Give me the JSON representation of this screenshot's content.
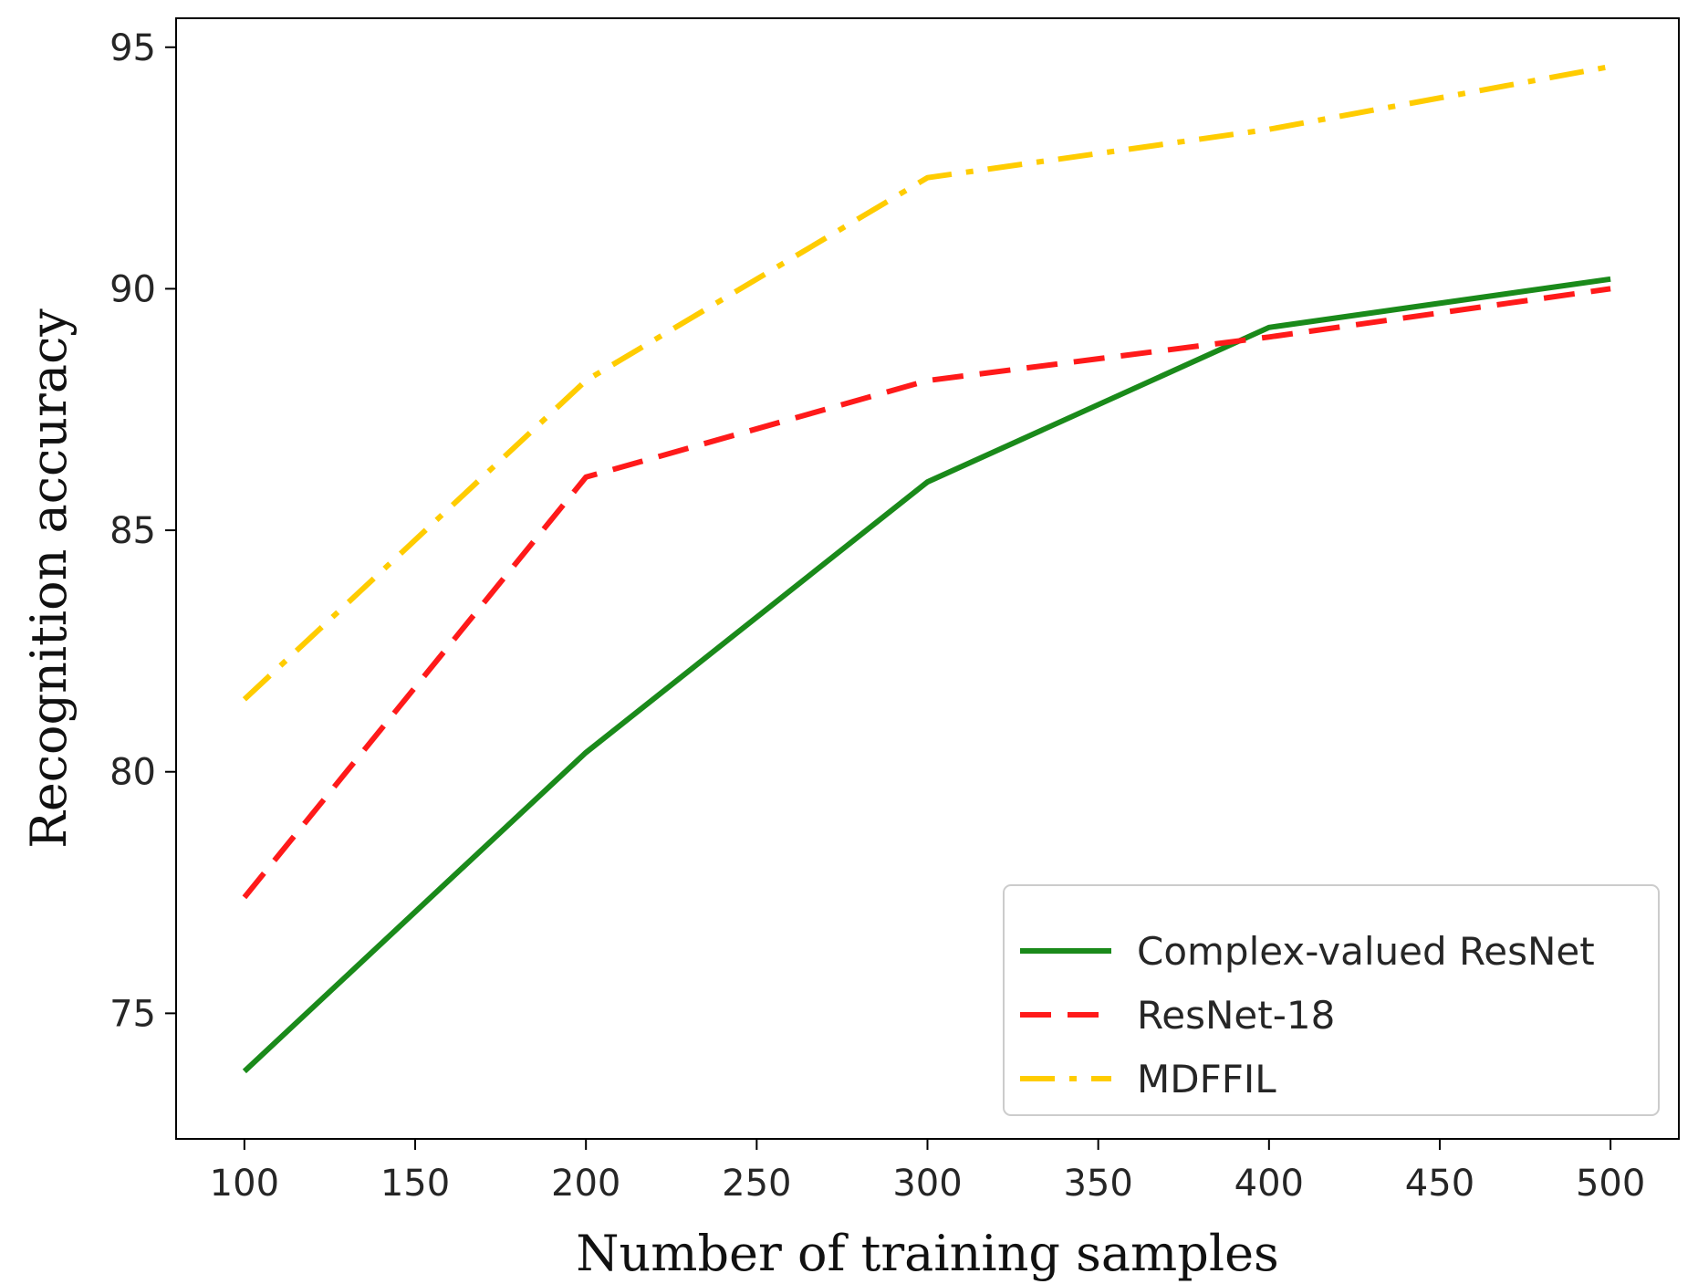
{
  "chart_data": {
    "type": "line",
    "title": "",
    "xlabel": "Number of training samples",
    "ylabel": "Recognition accuracy",
    "x": [
      100,
      200,
      300,
      400,
      500
    ],
    "xlim": [
      80,
      520
    ],
    "ylim": [
      72.4,
      95.6
    ],
    "xticks": [
      100,
      150,
      200,
      250,
      300,
      350,
      400,
      450,
      500
    ],
    "yticks": [
      75,
      80,
      85,
      90,
      95
    ],
    "grid": false,
    "legend_position": "lower-right",
    "series": [
      {
        "name": "Complex-valued ResNet",
        "values": [
          73.8,
          80.4,
          86.0,
          89.2,
          90.2
        ],
        "color": "#1a8a1a",
        "style": "solid"
      },
      {
        "name": "ResNet-18",
        "values": [
          77.4,
          86.1,
          88.1,
          89.0,
          90.0
        ],
        "color": "#ff1a1a",
        "style": "dashed"
      },
      {
        "name": "MDFFIL",
        "values": [
          81.5,
          88.1,
          92.3,
          93.3,
          94.6
        ],
        "color": "#ffcc00",
        "style": "dashdot"
      }
    ]
  }
}
